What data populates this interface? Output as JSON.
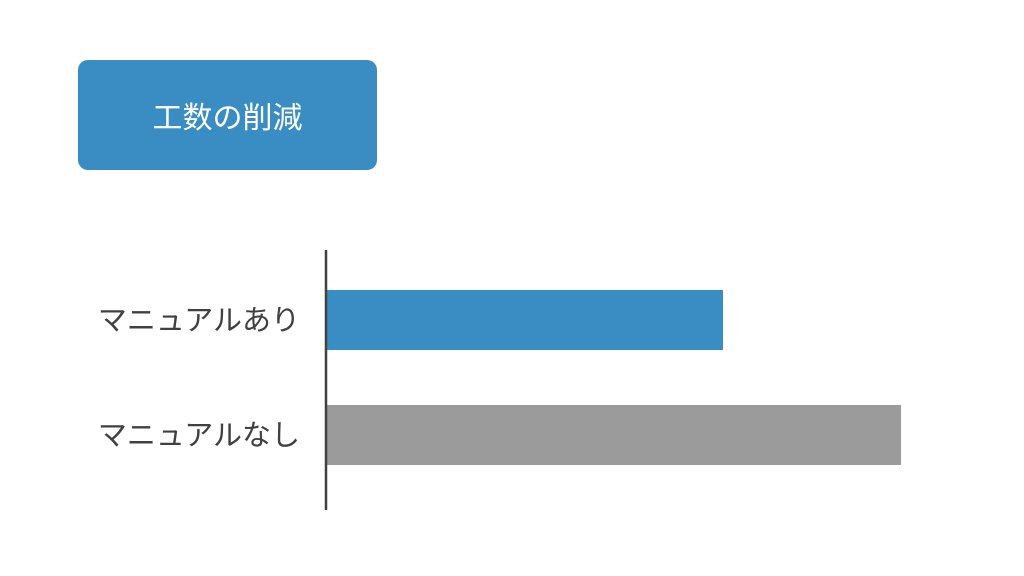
{
  "title": {
    "text": "工数の削減",
    "color": "#3a8dc3"
  },
  "chart_data": {
    "type": "bar",
    "orientation": "horizontal",
    "title": "",
    "xlabel": "",
    "ylabel": "",
    "categories": [
      "マニュアルあり",
      "マニュアルなし"
    ],
    "values": [
      69,
      100
    ],
    "colors": [
      "#3a8dc3",
      "#9b9b9b"
    ],
    "axis_color": "#404040",
    "grid": false,
    "legend": "none",
    "value_axis_shown": false
  }
}
